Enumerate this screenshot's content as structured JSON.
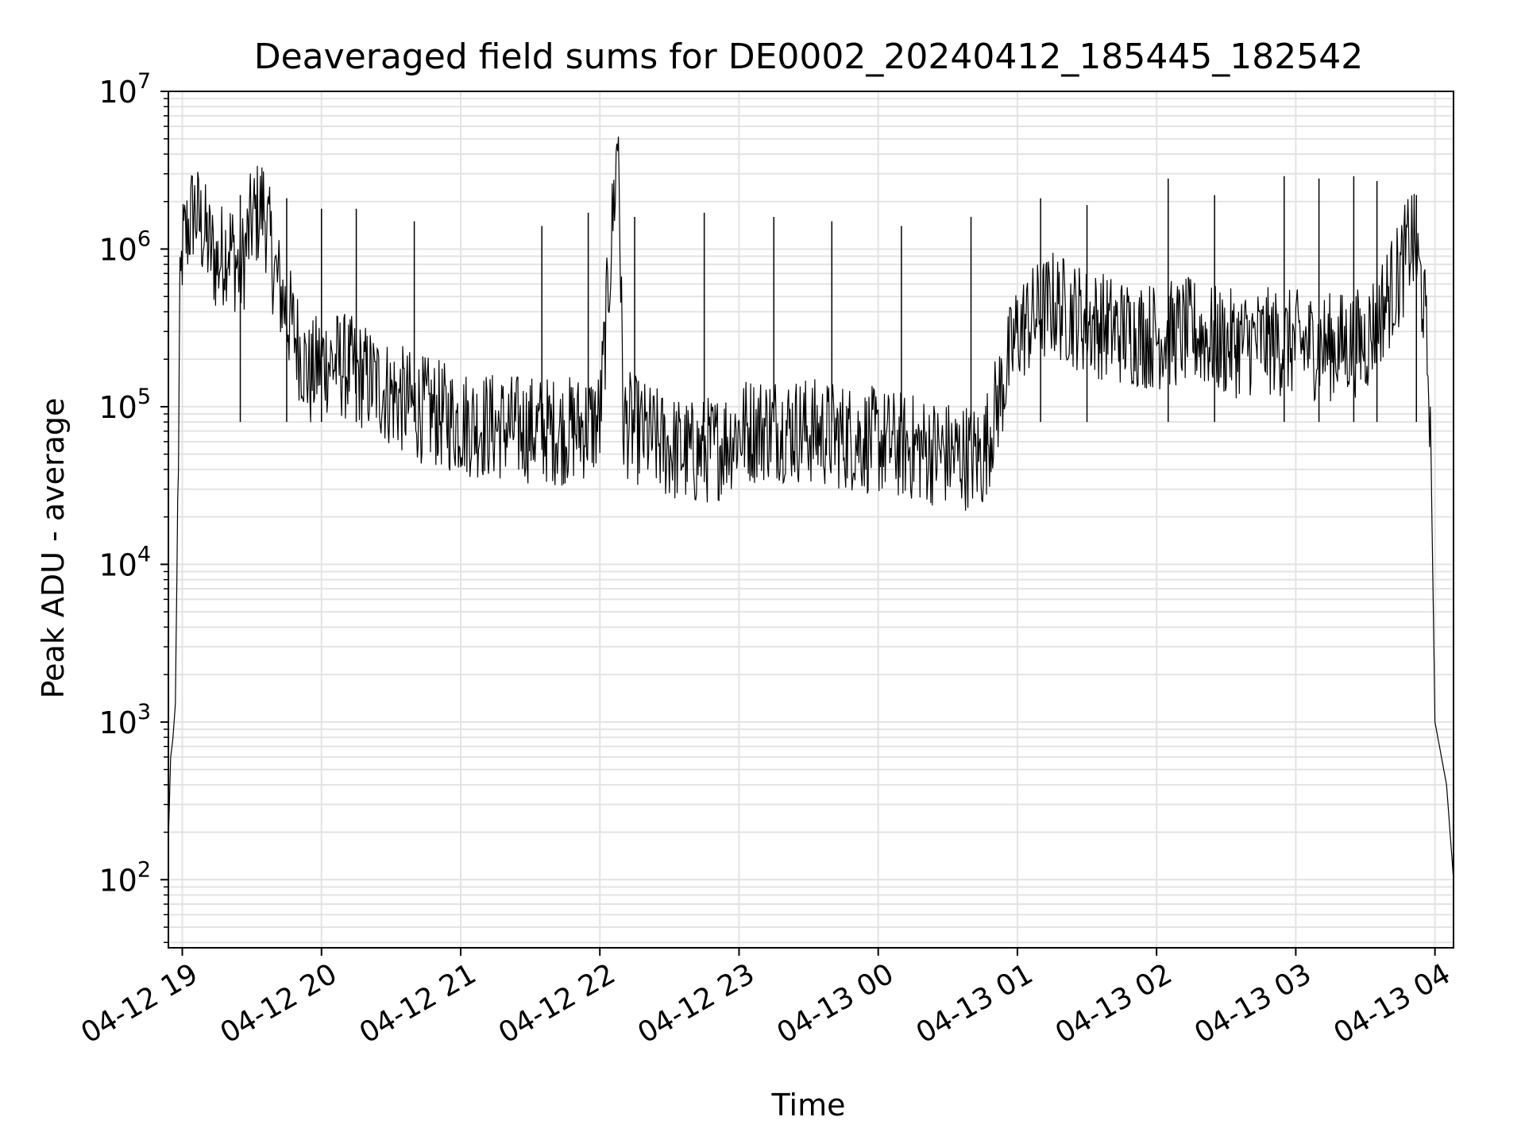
{
  "chart_data": {
    "type": "line",
    "title": "Deaveraged field sums for DE0002_20240412_185445_182542",
    "xlabel": "Time",
    "ylabel": "Peak ADU - average",
    "y_scale": "log",
    "ylim": [
      37,
      10000000
    ],
    "xlim": [
      "2024-04-12 18:54",
      "2024-04-13 04:08"
    ],
    "x_ticks": [
      {
        "value": "2024-04-12 19:00",
        "label": "04-12 19"
      },
      {
        "value": "2024-04-12 20:00",
        "label": "04-12 20"
      },
      {
        "value": "2024-04-12 21:00",
        "label": "04-12 21"
      },
      {
        "value": "2024-04-12 22:00",
        "label": "04-12 22"
      },
      {
        "value": "2024-04-12 23:00",
        "label": "04-12 23"
      },
      {
        "value": "2024-04-13 00:00",
        "label": "04-13 00"
      },
      {
        "value": "2024-04-13 01:00",
        "label": "04-13 01"
      },
      {
        "value": "2024-04-13 02:00",
        "label": "04-13 02"
      },
      {
        "value": "2024-04-13 03:00",
        "label": "04-13 03"
      },
      {
        "value": "2024-04-13 04:00",
        "label": "04-13 04"
      }
    ],
    "y_ticks": [
      {
        "value": 100,
        "base": "10",
        "exp": "2"
      },
      {
        "value": 1000,
        "base": "10",
        "exp": "3"
      },
      {
        "value": 10000,
        "base": "10",
        "exp": "4"
      },
      {
        "value": 100000,
        "base": "10",
        "exp": "5"
      },
      {
        "value": 1000000,
        "base": "10",
        "exp": "6"
      },
      {
        "value": 10000000,
        "base": "10",
        "exp": "7"
      }
    ],
    "grid": true,
    "line_color": "#000000",
    "grid_color": "#e3e3e3",
    "series": [
      {
        "values_note_free": true,
        "points": [
          [
            "2024-04-12 18:54",
            180
          ],
          [
            "2024-04-12 18:55",
            600
          ],
          [
            "2024-04-12 18:56",
            800
          ],
          [
            "2024-04-12 18:57",
            1300
          ],
          [
            "2024-04-12 18:58",
            20000
          ],
          [
            "2024-04-12 18:59",
            400000
          ],
          [
            "2024-04-12 19:00",
            1000000
          ],
          [
            "2024-04-12 19:05",
            1800000
          ],
          [
            "2024-04-12 19:10",
            1200000
          ],
          [
            "2024-04-12 19:15",
            800000
          ],
          [
            "2024-04-12 19:20",
            1100000
          ],
          [
            "2024-04-12 19:25",
            700000
          ],
          [
            "2024-04-12 19:30",
            1500000
          ],
          [
            "2024-04-12 19:35",
            1900000
          ],
          [
            "2024-04-12 19:40",
            700000
          ],
          [
            "2024-04-12 19:45",
            400000
          ],
          [
            "2024-04-12 19:50",
            250000
          ],
          [
            "2024-04-12 19:55",
            150000
          ],
          [
            "2024-04-12 20:00",
            200000
          ],
          [
            "2024-04-12 20:10",
            180000
          ],
          [
            "2024-04-12 20:20",
            150000
          ],
          [
            "2024-04-12 20:30",
            120000
          ],
          [
            "2024-04-12 20:40",
            100000
          ],
          [
            "2024-04-12 20:50",
            90000
          ],
          [
            "2024-04-12 21:00",
            80000
          ],
          [
            "2024-04-12 21:15",
            75000
          ],
          [
            "2024-04-12 21:30",
            72000
          ],
          [
            "2024-04-12 21:45",
            70000
          ],
          [
            "2024-04-12 22:00",
            80000
          ],
          [
            "2024-04-12 22:08",
            5700000
          ],
          [
            "2024-04-12 22:10",
            80000
          ],
          [
            "2024-04-12 22:20",
            65000
          ],
          [
            "2024-04-12 22:30",
            55000
          ],
          [
            "2024-04-12 22:40",
            50000
          ],
          [
            "2024-04-12 22:50",
            55000
          ],
          [
            "2024-04-12 23:00",
            70000
          ],
          [
            "2024-04-12 23:15",
            75000
          ],
          [
            "2024-04-12 23:30",
            70000
          ],
          [
            "2024-04-12 23:45",
            65000
          ],
          [
            "2024-04-13 00:00",
            60000
          ],
          [
            "2024-04-13 00:15",
            55000
          ],
          [
            "2024-04-13 00:30",
            50000
          ],
          [
            "2024-04-13 00:45",
            48000
          ],
          [
            "2024-04-13 01:00",
            300000
          ],
          [
            "2024-04-13 01:15",
            450000
          ],
          [
            "2024-04-13 01:30",
            350000
          ],
          [
            "2024-04-13 01:45",
            300000
          ],
          [
            "2024-04-13 02:00",
            280000
          ],
          [
            "2024-04-13 02:15",
            300000
          ],
          [
            "2024-04-13 02:30",
            250000
          ],
          [
            "2024-04-13 02:45",
            260000
          ],
          [
            "2024-04-13 03:00",
            250000
          ],
          [
            "2024-04-13 03:15",
            240000
          ],
          [
            "2024-04-13 03:30",
            260000
          ],
          [
            "2024-04-13 03:45",
            700000
          ],
          [
            "2024-04-13 03:50",
            1200000
          ],
          [
            "2024-04-13 03:55",
            500000
          ],
          [
            "2024-04-13 03:58",
            100000
          ],
          [
            "2024-04-13 04:00",
            1000
          ],
          [
            "2024-04-13 04:05",
            400
          ],
          [
            "2024-04-13 04:08",
            100
          ]
        ]
      }
    ],
    "spikes": [
      [
        "2024-04-12 19:25",
        2200000
      ],
      [
        "2024-04-12 19:45",
        2100000
      ],
      [
        "2024-04-12 20:00",
        1800000
      ],
      [
        "2024-04-12 20:15",
        1800000
      ],
      [
        "2024-04-12 20:40",
        1500000
      ],
      [
        "2024-04-12 21:35",
        1400000
      ],
      [
        "2024-04-12 21:55",
        1700000
      ],
      [
        "2024-04-12 22:15",
        1600000
      ],
      [
        "2024-04-12 22:45",
        1700000
      ],
      [
        "2024-04-12 23:15",
        1600000
      ],
      [
        "2024-04-12 23:40",
        1500000
      ],
      [
        "2024-04-13 00:10",
        1400000
      ],
      [
        "2024-04-13 00:40",
        1600000
      ],
      [
        "2024-04-13 01:10",
        2100000
      ],
      [
        "2024-04-13 01:30",
        1900000
      ],
      [
        "2024-04-13 02:05",
        2800000
      ],
      [
        "2024-04-13 02:25",
        2200000
      ],
      [
        "2024-04-13 02:55",
        2900000
      ],
      [
        "2024-04-13 03:10",
        2800000
      ],
      [
        "2024-04-13 03:25",
        2900000
      ],
      [
        "2024-04-13 03:35",
        2700000
      ],
      [
        "2024-04-13 03:52",
        2200000
      ]
    ]
  }
}
